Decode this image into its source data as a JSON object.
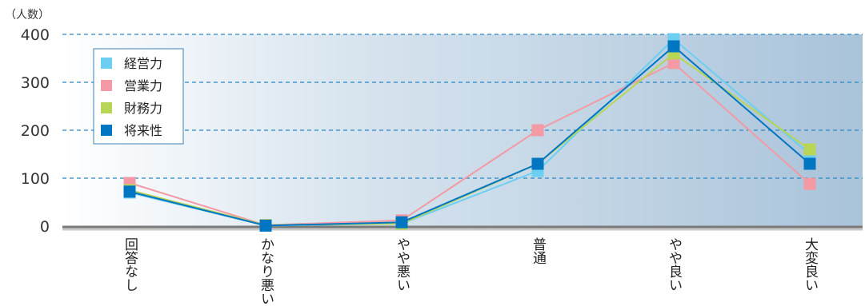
{
  "chart_data": {
    "type": "line",
    "ylabel": "（人数）",
    "ylim": [
      0,
      400
    ],
    "yticks": [
      "0",
      "100",
      "200",
      "300",
      "400"
    ],
    "grid": true,
    "legend_position": "top-left",
    "categories": [
      "回答なし",
      "かなり悪い",
      "やや悪い",
      "普通",
      "やや良い",
      "大変良い"
    ],
    "series": [
      {
        "name": "経営力",
        "color": "#6ccff2",
        "values": [
          70,
          1,
          5,
          115,
          390,
          150
        ]
      },
      {
        "name": "営業力",
        "color": "#f39aa4",
        "values": [
          90,
          2,
          12,
          200,
          340,
          88
        ]
      },
      {
        "name": "財務力",
        "color": "#b8d555",
        "values": [
          75,
          2,
          5,
          130,
          360,
          160
        ]
      },
      {
        "name": "将来性",
        "color": "#0075c2",
        "values": [
          72,
          1,
          8,
          130,
          375,
          130
        ]
      }
    ]
  }
}
